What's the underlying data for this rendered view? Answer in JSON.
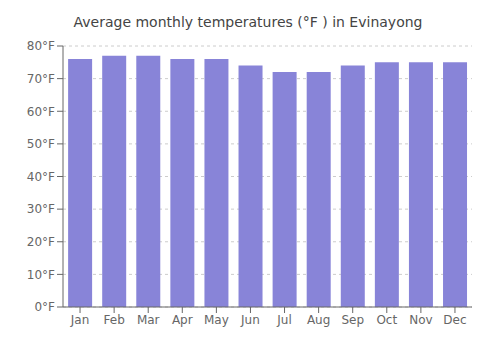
{
  "chart_data": {
    "type": "bar",
    "title": "Average monthly temperatures (°F ) in Evinayong",
    "categories": [
      "Jan",
      "Feb",
      "Mar",
      "Apr",
      "May",
      "Jun",
      "Jul",
      "Aug",
      "Sep",
      "Oct",
      "Nov",
      "Dec"
    ],
    "values": [
      76,
      77,
      77,
      76,
      76,
      74,
      72,
      72,
      74,
      75,
      75,
      75
    ],
    "ylim": [
      0,
      80
    ],
    "yticks": [
      {
        "value": 0,
        "label": "0°F"
      },
      {
        "value": 10,
        "label": "10°F"
      },
      {
        "value": 20,
        "label": "20°F"
      },
      {
        "value": 30,
        "label": "30°F"
      },
      {
        "value": 40,
        "label": "40°F"
      },
      {
        "value": 50,
        "label": "50°F"
      },
      {
        "value": 60,
        "label": "60°F"
      },
      {
        "value": 70,
        "label": "70°F"
      },
      {
        "value": 80,
        "label": "80°F"
      }
    ],
    "grid": true
  }
}
